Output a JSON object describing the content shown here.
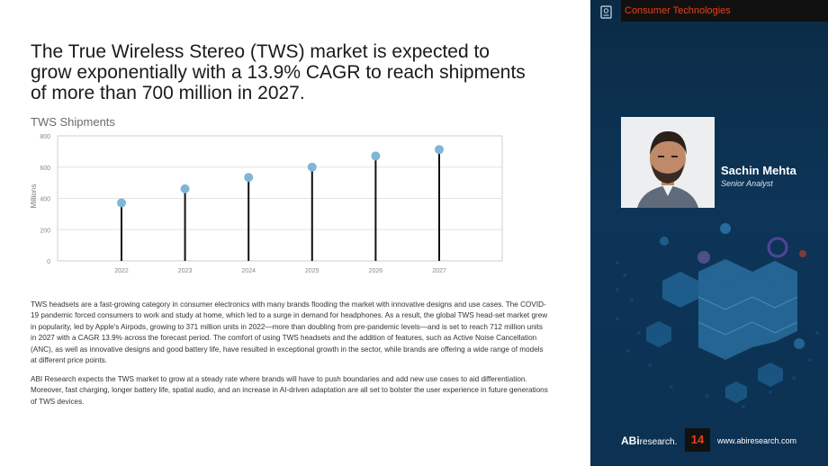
{
  "headline": "The True Wireless Stereo (TWS) market is expected to grow exponentially with a 13.9% CAGR to reach shipments of more than 700 million in 2027.",
  "chart_data": {
    "type": "scatter",
    "title": "TWS Shipments",
    "ylabel": "Millions",
    "xlabel": "",
    "x": [
      "2022",
      "2023",
      "2024",
      "2025",
      "2026",
      "2027"
    ],
    "values": [
      371,
      461,
      534,
      600,
      671,
      712
    ],
    "yticks": [
      0,
      200,
      400,
      600,
      800
    ],
    "ylim": [
      0,
      800
    ],
    "grid": true,
    "style": "lollipop",
    "colors": {
      "marker": "#7fb6d6",
      "stem": "#111111"
    }
  },
  "body": {
    "p1": "TWS headsets are a fast-growing category in consumer electronics with many brands flooding the market with innovative designs and use cases. The COVID-19 pandemic forced consumers to work and study at home, which led to a surge in demand for headphones. As a result, the global TWS head-set market grew in popularity, led by Apple's Airpods, growing to 371 million units in 2022—more than doubling from pre-pandemic levels—and is set to reach 712 million units in 2027 with a CAGR 13.9% across the forecast period. The comfort of using TWS headsets and the addition of features, such as Active Noise Cancellation (ANC), as well as innovative designs and good battery life, have resulted in exceptional growth in the sector, while brands are offering a wide range of models at different price points.",
    "p2": "ABI Research expects the TWS market to grow at a steady rate where brands will have to push boundaries and add new use cases to aid differentiation. Moreover, fast charging, longer battery life, spatial audio, and an increase in AI-driven adaptation are all set to bolster the user experience in future generations of TWS devices."
  },
  "sidebar": {
    "category": "Consumer Technologies",
    "category_icon": "document-icon",
    "analyst_name": "Sachin Mehta",
    "analyst_title": "Senior Analyst",
    "logo_bold": "ABi",
    "logo_rest": "research.",
    "page_number": "14",
    "url": "www.abiresearch.com",
    "accent_color": "#e8401c",
    "background_color": "#0d3558"
  }
}
